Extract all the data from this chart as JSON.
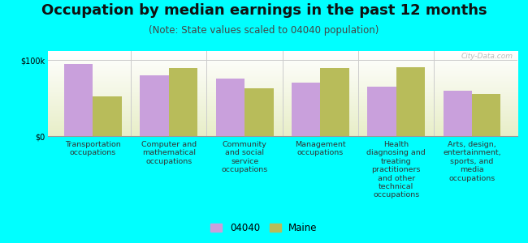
{
  "title": "Occupation by median earnings in the past 12 months",
  "subtitle": "(Note: State values scaled to 04040 population)",
  "categories": [
    "Transportation\noccupations",
    "Computer and\nmathematical\noccupations",
    "Community\nand social\nservice\noccupations",
    "Management\noccupations",
    "Health\ndiagnosing and\ntreating\npractitioners\nand other\ntechnical\noccupations",
    "Arts, design,\nentertainment,\nsports, and\nmedia\noccupations"
  ],
  "values_04040": [
    95000,
    80000,
    76000,
    70000,
    65000,
    60000
  ],
  "values_maine": [
    52000,
    90000,
    63000,
    90000,
    91000,
    56000
  ],
  "color_04040": "#c9a0dc",
  "color_maine": "#b8bc5a",
  "background_color": "#00ffff",
  "plot_bg_top": "#ffffff",
  "plot_bg_bottom": "#e8eec8",
  "ylabel_100k": "$100k",
  "ylabel_0": "$0",
  "ylim": [
    0,
    112000
  ],
  "yticks": [
    0,
    100000
  ],
  "watermark": "City-Data.com",
  "legend_04040": "04040",
  "legend_maine": "Maine",
  "title_fontsize": 13,
  "subtitle_fontsize": 8.5,
  "tick_fontsize": 7,
  "label_fontsize": 6.8,
  "bar_width": 0.38
}
